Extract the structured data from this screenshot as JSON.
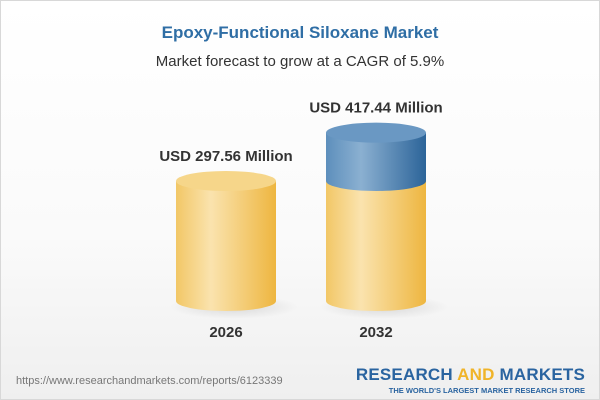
{
  "chart_data": {
    "type": "bar",
    "title": "Epoxy-Functional Siloxane Market",
    "subtitle": "Market forecast to grow at a CAGR of 5.9%",
    "categories": [
      "2026",
      "2032"
    ],
    "values": [
      297.56,
      417.44
    ],
    "data_labels": [
      "USD 297.56 Million",
      "USD 417.44 Million"
    ],
    "unit": "USD Million",
    "colors": {
      "base": "#f2c45a",
      "growth": "#3f7aad",
      "title": "#2f6ea5"
    }
  },
  "footer": {
    "url": "https://www.researchandmarkets.com/reports/6123339",
    "logo_part1": "RESEARCH ",
    "logo_part2": "AND",
    "logo_part3": " MARKETS",
    "logo_tagline": "THE WORLD'S LARGEST MARKET RESEARCH STORE"
  }
}
